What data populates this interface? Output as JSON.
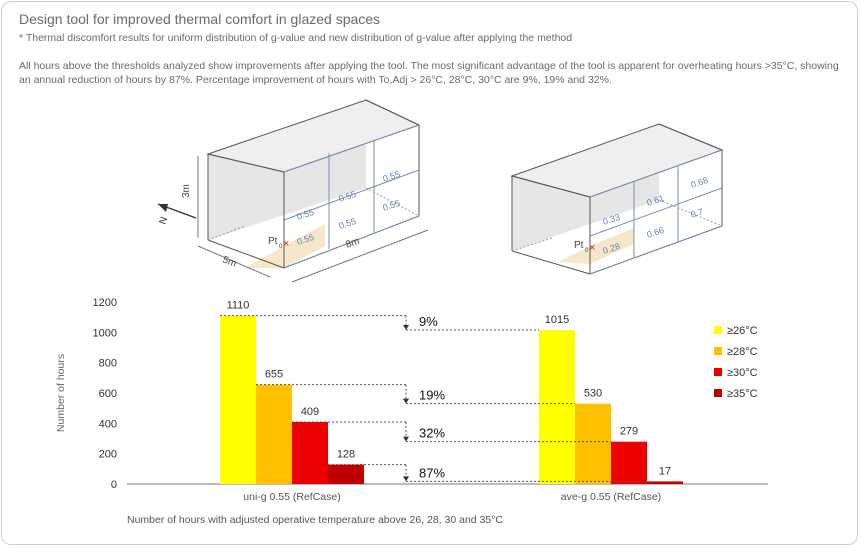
{
  "header": {
    "title": "Design tool for improved thermal comfort in glazed spaces",
    "subtitle": "* Thermal discomfort results for uniform distribution of g-value and new distribution of g-value after applying the method",
    "description": "All hours above the thresholds analyzed show improvements after applying the tool. The most significant advantage of the tool is apparent for overheating hours >35°C, showing an annual reduction of hours by 87%. Percentage improvement of hours with To,Adj > 26°C, 28°C, 30°C are 9%, 19% and 32%."
  },
  "diagrams": {
    "left": {
      "height_label": "3m",
      "width_label": "5m",
      "length_label": "8m",
      "north_label": "N",
      "point_label": "Pt",
      "point_sub": "0",
      "g_values": [
        "0.55",
        "0.55",
        "0.55",
        "0.55",
        "0.55",
        "0.55"
      ]
    },
    "right": {
      "point_label": "Pt",
      "point_sub": "0",
      "g_values": [
        "0.28",
        "0.33",
        "0.66",
        "0.61",
        "0.7",
        "0.68"
      ]
    }
  },
  "chart_data": {
    "type": "bar",
    "categories": [
      "uni-g 0.55 (RefCase)",
      "ave-g 0.55 (RefCase)"
    ],
    "series": [
      {
        "name": "≥26°C",
        "color": "#ffff00",
        "values": [
          1110,
          1015
        ]
      },
      {
        "name": "≥28°C",
        "color": "#ffc000",
        "values": [
          655,
          530
        ]
      },
      {
        "name": "≥30°C",
        "color": "#ee0000",
        "values": [
          409,
          279
        ]
      },
      {
        "name": "≥35°C",
        "color": "#c00000",
        "values": [
          128,
          17
        ]
      }
    ],
    "ylabel": "Number of hours",
    "ylim": [
      0,
      1200
    ],
    "yticks": [
      0,
      200,
      400,
      600,
      800,
      1000,
      1200
    ],
    "grid": false,
    "legend": "right",
    "reductions": [
      "9%",
      "19%",
      "32%",
      "87%"
    ],
    "caption": "Number of hours with adjusted operative temperature above 26, 28, 30 and 35°C"
  }
}
